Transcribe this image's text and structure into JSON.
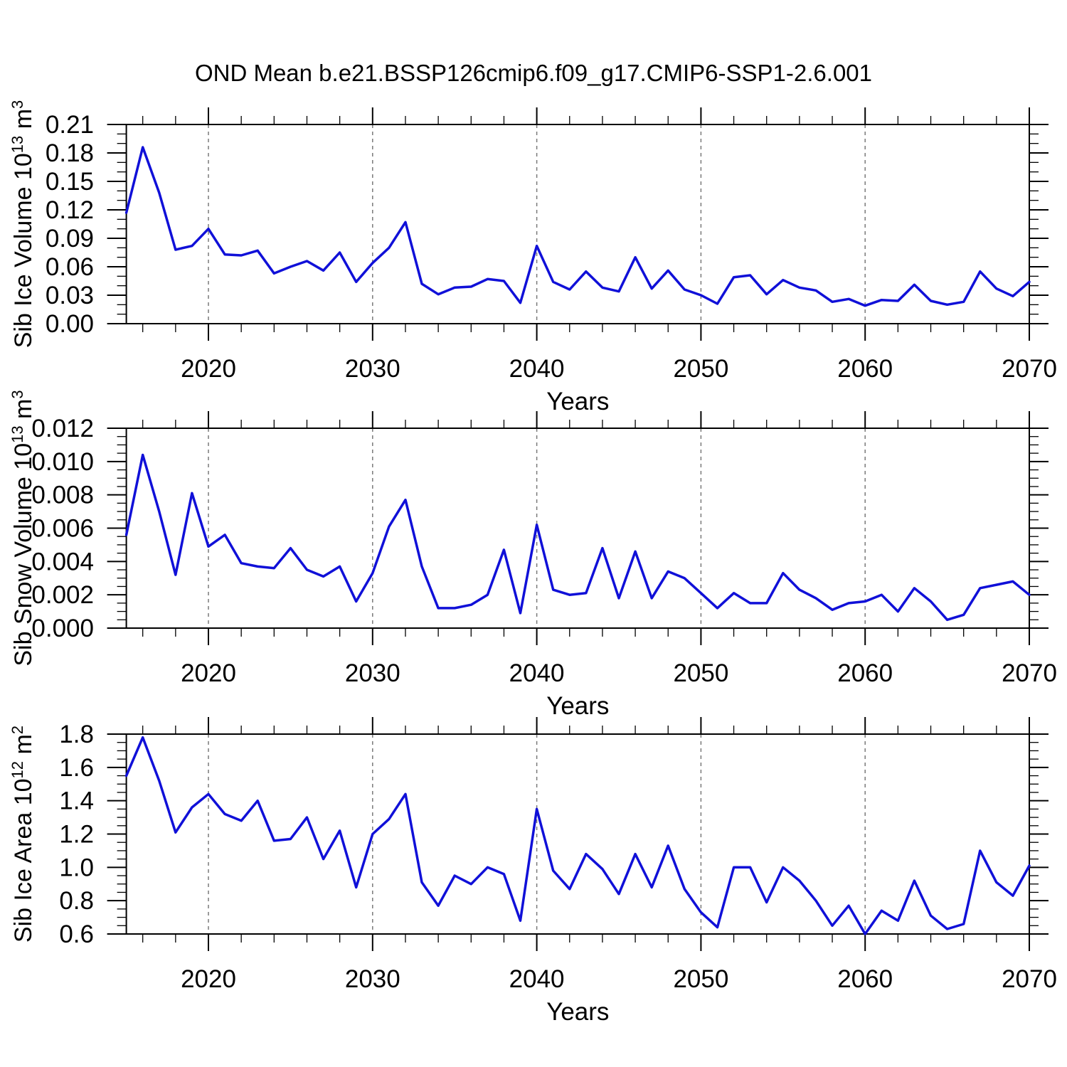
{
  "title": "OND Mean b.e21.BSSP126cmip6.f09_g17.CMIP6-SSP1-2.6.001",
  "colors": {
    "line": "#1010d8",
    "grid": "#7a7a7a",
    "axis": "#000000"
  },
  "x_axis": {
    "label": "Years",
    "min": 2015,
    "max": 2070,
    "major_tick_labels": [
      "2020",
      "2030",
      "2040",
      "2050",
      "2060",
      "2070"
    ],
    "major_ticks": [
      2020,
      2030,
      2040,
      2050,
      2060,
      2070
    ],
    "minor_step": 2,
    "gridline_years": [
      2020,
      2030,
      2040,
      2050,
      2060
    ]
  },
  "years": [
    2015,
    2016,
    2017,
    2018,
    2019,
    2020,
    2021,
    2022,
    2023,
    2024,
    2025,
    2026,
    2027,
    2028,
    2029,
    2030,
    2031,
    2032,
    2033,
    2034,
    2035,
    2036,
    2037,
    2038,
    2039,
    2040,
    2041,
    2042,
    2043,
    2044,
    2045,
    2046,
    2047,
    2048,
    2049,
    2050,
    2051,
    2052,
    2053,
    2054,
    2055,
    2056,
    2057,
    2058,
    2059,
    2060,
    2061,
    2062,
    2063,
    2064,
    2065,
    2066,
    2067,
    2068,
    2069,
    2070
  ],
  "chart_data": [
    {
      "type": "line",
      "name": "sib-ice-volume",
      "ylabel_parts": [
        {
          "t": "Sib Ice Volume 10"
        },
        {
          "s": "13"
        },
        {
          "t": " m"
        },
        {
          "s": "3"
        }
      ],
      "ylim": [
        0.0,
        0.21
      ],
      "ytick_labels": [
        "0.00",
        "0.03",
        "0.06",
        "0.09",
        "0.12",
        "0.15",
        "0.18",
        "0.21"
      ],
      "y_major_step": 0.03,
      "y_minor_step": 0.01,
      "values": [
        0.117,
        0.186,
        0.138,
        0.078,
        0.082,
        0.1,
        0.073,
        0.072,
        0.077,
        0.053,
        0.06,
        0.066,
        0.056,
        0.075,
        0.044,
        0.064,
        0.08,
        0.107,
        0.042,
        0.031,
        0.038,
        0.039,
        0.047,
        0.045,
        0.022,
        0.082,
        0.044,
        0.036,
        0.055,
        0.038,
        0.034,
        0.07,
        0.037,
        0.056,
        0.036,
        0.03,
        0.021,
        0.049,
        0.051,
        0.031,
        0.046,
        0.038,
        0.035,
        0.023,
        0.026,
        0.019,
        0.025,
        0.024,
        0.041,
        0.024,
        0.02,
        0.023,
        0.055,
        0.037,
        0.029,
        0.044
      ]
    },
    {
      "type": "line",
      "name": "sib-snow-volume",
      "ylabel_parts": [
        {
          "t": "Sib Snow Volume 10"
        },
        {
          "s": "13"
        },
        {
          "t": " m"
        },
        {
          "s": "3"
        }
      ],
      "ylim": [
        0.0,
        0.012
      ],
      "ytick_labels": [
        "0.000",
        "0.002",
        "0.004",
        "0.006",
        "0.008",
        "0.010",
        "0.012"
      ],
      "y_major_step": 0.002,
      "y_minor_step": 0.0005,
      "values": [
        0.0056,
        0.0104,
        0.007,
        0.0032,
        0.0081,
        0.0049,
        0.0056,
        0.0039,
        0.0037,
        0.0036,
        0.0048,
        0.0035,
        0.0031,
        0.0037,
        0.0016,
        0.0033,
        0.0061,
        0.0077,
        0.0037,
        0.0012,
        0.0012,
        0.0014,
        0.002,
        0.0047,
        0.0009,
        0.0062,
        0.0023,
        0.002,
        0.0021,
        0.0048,
        0.0018,
        0.0046,
        0.0018,
        0.0034,
        0.003,
        0.0021,
        0.0012,
        0.0021,
        0.0015,
        0.0015,
        0.0033,
        0.0023,
        0.0018,
        0.0011,
        0.0015,
        0.0016,
        0.002,
        0.001,
        0.0024,
        0.0016,
        0.0005,
        0.0008,
        0.0024,
        0.0026,
        0.0028,
        0.002
      ]
    },
    {
      "type": "line",
      "name": "sib-ice-area",
      "ylabel_parts": [
        {
          "t": "Sib Ice Area 10"
        },
        {
          "s": "12"
        },
        {
          "t": " m"
        },
        {
          "s": "2"
        }
      ],
      "ylim": [
        0.6,
        1.8
      ],
      "ytick_labels": [
        "0.6",
        "0.8",
        "1.0",
        "1.2",
        "1.4",
        "1.6",
        "1.8"
      ],
      "y_major_step": 0.2,
      "y_minor_step": 0.05,
      "values": [
        1.55,
        1.78,
        1.52,
        1.21,
        1.36,
        1.44,
        1.32,
        1.28,
        1.4,
        1.16,
        1.17,
        1.3,
        1.05,
        1.22,
        0.88,
        1.2,
        1.29,
        1.44,
        0.91,
        0.77,
        0.95,
        0.9,
        1.0,
        0.96,
        0.68,
        1.35,
        0.98,
        0.87,
        1.08,
        0.99,
        0.84,
        1.08,
        0.88,
        1.13,
        0.87,
        0.73,
        0.64,
        1.0,
        1.0,
        0.79,
        1.0,
        0.92,
        0.8,
        0.65,
        0.77,
        0.6,
        0.74,
        0.68,
        0.92,
        0.71,
        0.63,
        0.66,
        1.1,
        0.91,
        0.83,
        1.01
      ]
    }
  ]
}
